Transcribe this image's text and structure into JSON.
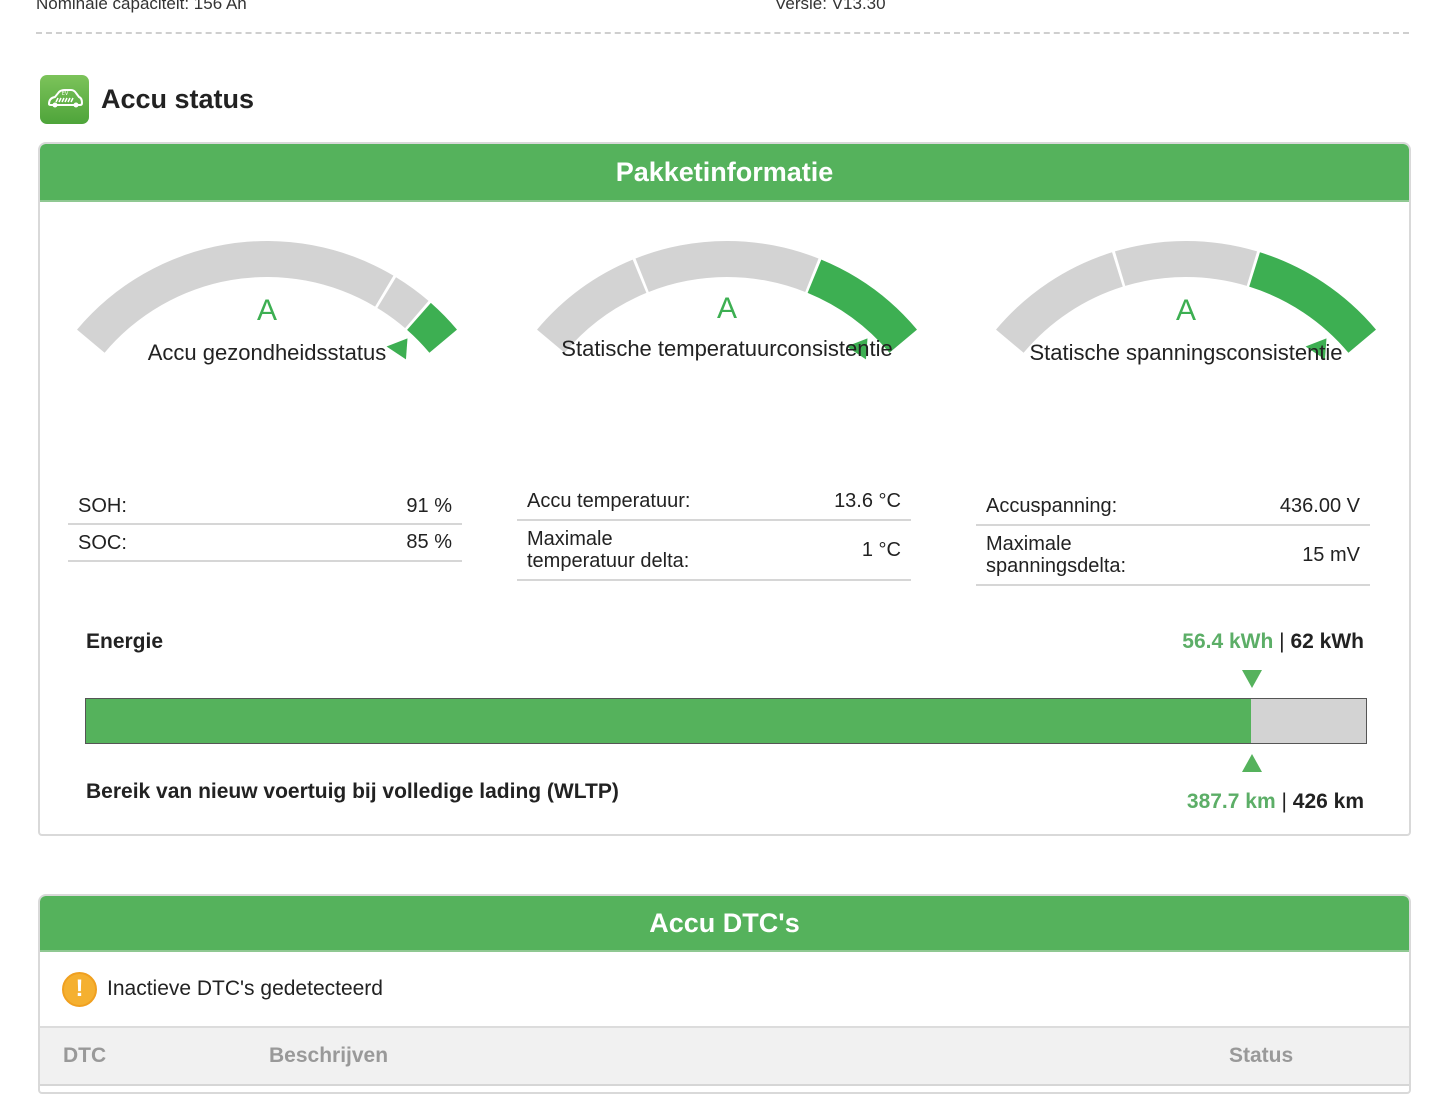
{
  "top_info": {
    "nominal_capacity": "Nominale capaciteit: 156 Ah",
    "version": "Versie: V13.30"
  },
  "section": {
    "title": "Accu status",
    "icon": "ev-car-icon",
    "icon_text": "EV"
  },
  "pack_info": {
    "title": "Pakketinformatie",
    "gauges": [
      {
        "grade": "A",
        "label": "Accu gezondheidsstatus",
        "rows": [
          {
            "key": "SOH:",
            "value": "91 %"
          },
          {
            "key": "SOC:",
            "value": "85 %"
          }
        ]
      },
      {
        "grade": "A",
        "label": "Statische temperatuurconsistentie",
        "rows": [
          {
            "key": "Accu temperatuur:",
            "value": "13.6 °C"
          },
          {
            "key": "Maximale\ntemperatuur delta:",
            "value": "1 °C"
          }
        ]
      },
      {
        "grade": "A",
        "label": "Statische spanningsconsistentie",
        "rows": [
          {
            "key": "Accuspanning:",
            "value": "436.00 V"
          },
          {
            "key": "Maximale\nspanningsdelta:",
            "value": "15 mV"
          }
        ]
      }
    ],
    "energy": {
      "label": "Energie",
      "current": "56.4 kWh",
      "separator": " | ",
      "total": "62 kWh",
      "fill_percent": 91
    },
    "range": {
      "label": "Bereik van nieuw voertuig bij volledige lading (WLTP)",
      "current": "387.7 km",
      "separator": " | ",
      "total": "426 km"
    }
  },
  "dtc": {
    "title": "Accu DTC's",
    "status_icon": "warning-icon",
    "status_text": "Inactieve DTC's gedetecteerd",
    "columns": [
      "DTC",
      "Beschrijven",
      "Status"
    ]
  },
  "colors": {
    "accent_green": "#55b25c",
    "gauge_green": "#3daf52",
    "gauge_gray": "#d3d3d3",
    "warning": "#f5b030"
  }
}
